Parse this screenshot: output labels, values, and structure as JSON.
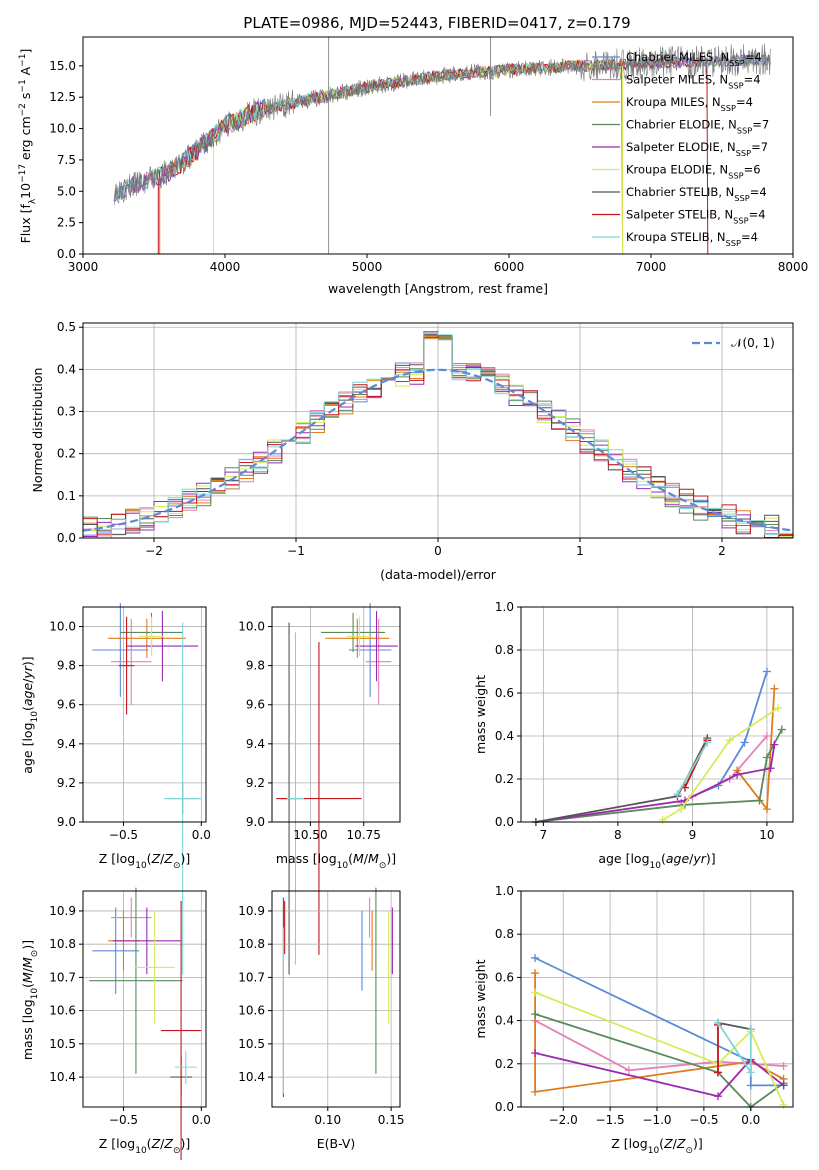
{
  "palette": {
    "Chabrier MILES": "#5b8ad8",
    "Salpeter MILES": "#e67fb9",
    "Kroupa MILES": "#e07b20",
    "Chabrier ELODIE": "#5a8a5a",
    "Salpeter ELODIE": "#9a2ab0",
    "Kroupa ELODIE": "#d6ec5a",
    "Chabrier STELIB": "#555555",
    "Salpeter STELIB": "#c0161c",
    "Kroupa STELIB": "#7fd6d6"
  },
  "chart_data": [
    {
      "id": "spectrum",
      "type": "line",
      "title": "PLATE=0986, MJD=52443, FIBERID=0417, z=0.179",
      "xlabel": "wavelength [Angstrom, rest frame]",
      "ylabel": "Flux [f",
      "xlim": [
        3000,
        8000
      ],
      "ylim": [
        0,
        17.3
      ],
      "xticks": [
        "3000",
        "4000",
        "5000",
        "6000",
        "7000",
        "8000"
      ],
      "yticks": [
        "0.0",
        "2.5",
        "5.0",
        "7.5",
        "10.0",
        "12.5",
        "15.0"
      ],
      "continuum": {
        "x": [
          3220,
          3400,
          3600,
          3800,
          4000,
          4200,
          4500,
          5000,
          5500,
          6000,
          6500,
          7000,
          7500,
          7840
        ],
        "y": [
          5.0,
          5.6,
          6.5,
          8.2,
          10.2,
          11.3,
          12.1,
          13.3,
          14.2,
          14.7,
          15.0,
          15.2,
          15.4,
          15.5
        ]
      },
      "legend": [
        {
          "label": "Chabrier MILES, N",
          "sub": "SSP",
          "suffix": "=4"
        },
        {
          "label": "Salpeter MILES, N",
          "sub": "SSP",
          "suffix": "=4"
        },
        {
          "label": "Kroupa MILES, N",
          "sub": "SSP",
          "suffix": "=4"
        },
        {
          "label": "Chabrier ELODIE, N",
          "sub": "SSP",
          "suffix": "=7"
        },
        {
          "label": "Salpeter ELODIE, N",
          "sub": "SSP",
          "suffix": "=7"
        },
        {
          "label": "Kroupa ELODIE, N",
          "sub": "SSP",
          "suffix": "=6"
        },
        {
          "label": "Chabrier STELIB, N",
          "sub": "SSP",
          "suffix": "=4"
        },
        {
          "label": "Salpeter STELIB, N",
          "sub": "SSP",
          "suffix": "=4"
        },
        {
          "label": "Kroupa STELIB, N",
          "sub": "SSP",
          "suffix": "=4"
        }
      ]
    },
    {
      "id": "residuals",
      "type": "line",
      "xlabel": "(data-model)/error",
      "ylabel": "Normed distribution",
      "xlim": [
        -2.5,
        2.5
      ],
      "ylim": [
        0,
        0.51
      ],
      "xticks": [
        -2,
        -1,
        0,
        1,
        2
      ],
      "xtick_labels": [
        "−2",
        "−1",
        "0",
        "1",
        "2"
      ],
      "yticks": [
        0.0,
        0.1,
        0.2,
        0.3,
        0.4,
        0.5
      ],
      "ytick_labels": [
        "0.0",
        "0.1",
        "0.2",
        "0.3",
        "0.4",
        "0.5"
      ],
      "bin_width": 0.1,
      "legend": "𝒩(0, 1)",
      "gaussian": {
        "mean": 0,
        "sigma": 1
      }
    },
    {
      "id": "age_vs_Z",
      "type": "scatter",
      "xlabel": "Z [log",
      "ylabel": "age  [log",
      "xlim": [
        -0.76,
        0.03
      ],
      "ylim": [
        9.0,
        10.1
      ],
      "xticks": [
        -0.5,
        0.0
      ],
      "xtick_labels": [
        "−0.5",
        "0.0"
      ],
      "yticks": [
        9.0,
        9.2,
        9.4,
        9.6,
        9.8,
        10.0
      ],
      "ytick_labels": [
        "9.0",
        "9.2",
        "9.4",
        "9.6",
        "9.8",
        "10.0"
      ],
      "points": [
        {
          "model": "Chabrier MILES",
          "x": -0.52,
          "xerr": 0.18,
          "y": 9.88,
          "yerr": 0.24
        },
        {
          "model": "Salpeter MILES",
          "x": -0.45,
          "xerr": 0.13,
          "y": 9.82,
          "yerr": 0.22
        },
        {
          "model": "Kroupa MILES",
          "x": -0.35,
          "xerr": 0.25,
          "y": 9.94,
          "yerr": 0.1
        },
        {
          "model": "Chabrier ELODIE",
          "x": -0.32,
          "xerr": 0.2,
          "y": 9.97,
          "yerr": 0.1
        },
        {
          "model": "Salpeter ELODIE",
          "x": -0.25,
          "xerr": 0.23,
          "y": 9.9,
          "yerr": 0.18
        },
        {
          "model": "Kroupa ELODIE",
          "x": -0.32,
          "xerr": 0.08,
          "y": 9.95,
          "yerr": 0.1
        },
        {
          "model": "Chabrier STELIB",
          "x": -0.12,
          "xerr": 0.1,
          "y": 9.12,
          "yerr": 0.08
        },
        {
          "model": "Salpeter STELIB",
          "x": -0.48,
          "xerr": 0.05,
          "y": 9.8,
          "yerr": 0.25
        },
        {
          "model": "Kroupa STELIB",
          "x": -0.12,
          "xerr": 0.12,
          "y": 9.12,
          "yerr": 0.9
        }
      ]
    },
    {
      "id": "age_vs_mass",
      "type": "scatter",
      "xlabel": "mass [log",
      "ylabel": "",
      "xlim": [
        10.32,
        10.92
      ],
      "ylim": [
        9.0,
        10.1
      ],
      "xticks": [
        10.5,
        10.75
      ],
      "xtick_labels": [
        "10.50",
        "10.75"
      ],
      "yticks": [
        9.0,
        9.2,
        9.4,
        9.6,
        9.8,
        10.0
      ],
      "ytick_labels": [
        "9.0",
        "9.2",
        "9.4",
        "9.6",
        "9.8",
        "10.0"
      ],
      "points": [
        {
          "model": "Chabrier MILES",
          "x": 10.78,
          "xerr": 0.1,
          "y": 9.88,
          "yerr": 0.24
        },
        {
          "model": "Salpeter MILES",
          "x": 10.82,
          "xerr": 0.06,
          "y": 9.82,
          "yerr": 0.22
        },
        {
          "model": "Kroupa MILES",
          "x": 10.72,
          "xerr": 0.15,
          "y": 9.94,
          "yerr": 0.1
        },
        {
          "model": "Chabrier ELODIE",
          "x": 10.7,
          "xerr": 0.15,
          "y": 9.97,
          "yerr": 0.1
        },
        {
          "model": "Salpeter ELODIE",
          "x": 10.81,
          "xerr": 0.1,
          "y": 9.9,
          "yerr": 0.18
        },
        {
          "model": "Kroupa ELODIE",
          "x": 10.73,
          "xerr": 0.06,
          "y": 9.95,
          "yerr": 0.1
        },
        {
          "model": "Chabrier STELIB",
          "x": 10.4,
          "xerr": 0.04,
          "y": 9.12,
          "yerr": 0.9
        },
        {
          "model": "Salpeter STELIB",
          "x": 10.54,
          "xerr": 0.2,
          "y": 9.12,
          "yerr": 0.8
        },
        {
          "model": "Kroupa STELIB",
          "x": 10.43,
          "xerr": 0.04,
          "y": 9.12,
          "yerr": 0.85
        }
      ]
    },
    {
      "id": "mass_weight_vs_age",
      "type": "line",
      "xlabel": "age  [log",
      "ylabel": "mass weight",
      "xlim": [
        6.7,
        10.35
      ],
      "ylim": [
        0,
        1.0
      ],
      "xticks": [
        7,
        8,
        9,
        10
      ],
      "xtick_labels": [
        "7",
        "8",
        "9",
        "10"
      ],
      "yticks": [
        0,
        0.2,
        0.4,
        0.6,
        0.8,
        1.0
      ],
      "ytick_labels": [
        "0.0",
        "0.2",
        "0.4",
        "0.6",
        "0.8",
        "1.0"
      ],
      "series": [
        {
          "name": "Chabrier MILES",
          "x": [
            9.0,
            9.35,
            9.7,
            10.0
          ],
          "y": [
            0.12,
            0.17,
            0.37,
            0.7
          ]
        },
        {
          "name": "Salpeter MILES",
          "x": [
            8.85,
            9.0,
            9.5,
            10.0
          ],
          "y": [
            0.09,
            0.12,
            0.2,
            0.4
          ]
        },
        {
          "name": "Kroupa MILES",
          "x": [
            9.6,
            10.0,
            10.1
          ],
          "y": [
            0.24,
            0.06,
            0.62
          ]
        },
        {
          "name": "Chabrier ELODIE",
          "x": [
            6.9,
            8.9,
            9.9,
            10.0,
            10.2
          ],
          "y": [
            0.0,
            0.08,
            0.1,
            0.3,
            0.43
          ]
        },
        {
          "name": "Salpeter ELODIE",
          "x": [
            6.9,
            8.9,
            9.6,
            10.05,
            10.1
          ],
          "y": [
            0.0,
            0.1,
            0.22,
            0.25,
            0.36
          ]
        },
        {
          "name": "Kroupa ELODIE",
          "x": [
            8.6,
            8.85,
            9.5,
            10.15
          ],
          "y": [
            0.01,
            0.06,
            0.38,
            0.53
          ]
        },
        {
          "name": "Chabrier STELIB",
          "x": [
            6.9,
            8.8,
            9.2
          ],
          "y": [
            0.0,
            0.12,
            0.39
          ]
        },
        {
          "name": "Salpeter STELIB",
          "x": [
            8.9,
            9.2
          ],
          "y": [
            0.16,
            0.38
          ]
        },
        {
          "name": "Kroupa STELIB",
          "x": [
            8.8,
            9.2
          ],
          "y": [
            0.13,
            0.37
          ]
        }
      ]
    },
    {
      "id": "mass_vs_Z",
      "type": "scatter",
      "xlabel": "Z [log",
      "ylabel": "mass [log",
      "xlim": [
        -0.76,
        0.03
      ],
      "ylim": [
        10.31,
        10.96
      ],
      "xticks": [
        -0.5,
        0.0
      ],
      "xtick_labels": [
        "−0.5",
        "0.0"
      ],
      "yticks": [
        10.4,
        10.5,
        10.6,
        10.7,
        10.8,
        10.9
      ],
      "ytick_labels": [
        "10.4",
        "10.5",
        "10.6",
        "10.7",
        "10.8",
        "10.9"
      ],
      "points": [
        {
          "model": "Chabrier MILES",
          "x": -0.55,
          "xerr": 0.15,
          "y": 10.78,
          "yerr": 0.13
        },
        {
          "model": "Salpeter MILES",
          "x": -0.45,
          "xerr": 0.13,
          "y": 10.88,
          "yerr": 0.06
        },
        {
          "model": "Kroupa MILES",
          "x": -0.5,
          "xerr": 0.1,
          "y": 10.81,
          "yerr": 0.09
        },
        {
          "model": "Chabrier ELODIE",
          "x": -0.42,
          "xerr": 0.3,
          "y": 10.69,
          "yerr": 0.28
        },
        {
          "model": "Salpeter ELODIE",
          "x": -0.35,
          "xerr": 0.22,
          "y": 10.81,
          "yerr": 0.1
        },
        {
          "model": "Kroupa ELODIE",
          "x": -0.3,
          "xerr": 0.13,
          "y": 10.73,
          "yerr": 0.17
        },
        {
          "model": "Chabrier STELIB",
          "x": -0.13,
          "xerr": 0.07,
          "y": 10.4,
          "yerr": 0.06
        },
        {
          "model": "Salpeter STELIB",
          "x": -0.13,
          "xerr": 0.13,
          "y": 10.54,
          "yerr": 0.39
        },
        {
          "model": "Kroupa STELIB",
          "x": -0.1,
          "xerr": 0.07,
          "y": 10.43,
          "yerr": 0.05
        }
      ]
    },
    {
      "id": "mass_vs_ebv",
      "type": "scatter",
      "xlabel": "E(B-V)",
      "ylabel": "",
      "xlim": [
        0.056,
        0.157
      ],
      "ylim": [
        10.31,
        10.96
      ],
      "xticks": [
        0.1,
        0.15
      ],
      "xtick_labels": [
        "0.10",
        "0.15"
      ],
      "yticks": [
        10.4,
        10.5,
        10.6,
        10.7,
        10.8,
        10.9
      ],
      "ytick_labels": [
        "10.4",
        "10.5",
        "10.6",
        "10.7",
        "10.8",
        "10.9"
      ],
      "points": [
        {
          "model": "Chabrier MILES",
          "x": 0.127,
          "y": 10.78,
          "yerr": 0.12
        },
        {
          "model": "Salpeter MILES",
          "x": 0.133,
          "y": 10.88,
          "yerr": 0.06
        },
        {
          "model": "Kroupa MILES",
          "x": 0.135,
          "y": 10.81,
          "yerr": 0.09
        },
        {
          "model": "Chabrier ELODIE",
          "x": 0.138,
          "y": 10.69,
          "yerr": 0.28
        },
        {
          "model": "Salpeter ELODIE",
          "x": 0.151,
          "y": 10.81,
          "yerr": 0.1
        },
        {
          "model": "Kroupa ELODIE",
          "x": 0.148,
          "y": 10.73,
          "yerr": 0.17
        },
        {
          "model": "Chabrier STELIB",
          "x": 0.065,
          "y": 10.64,
          "yerr": 0.3
        },
        {
          "model": "Salpeter STELIB",
          "x": 0.066,
          "y": 10.85,
          "yerr": 0.08
        },
        {
          "model": "Kroupa STELIB",
          "x": 0.065,
          "y": 10.6,
          "yerr": 0.25
        }
      ]
    },
    {
      "id": "mass_weight_vs_Z",
      "type": "line",
      "xlabel": "Z [log",
      "ylabel": "mass weight",
      "xlim": [
        -2.45,
        0.45
      ],
      "ylim": [
        0,
        1.0
      ],
      "xticks": [
        -2.0,
        -1.5,
        -1.0,
        -0.5,
        0.0
      ],
      "xtick_labels": [
        "−2.0",
        "−1.5",
        "−1.0",
        "−0.5",
        "0.0"
      ],
      "yticks": [
        0,
        0.2,
        0.4,
        0.6,
        0.8,
        1.0
      ],
      "ytick_labels": [
        "0.0",
        "0.2",
        "0.4",
        "0.6",
        "0.8",
        "1.0"
      ],
      "series": [
        {
          "name": "Chabrier MILES",
          "x": [
            -2.3,
            0.0,
            0.0,
            0.35
          ],
          "y": [
            0.69,
            0.21,
            0.1,
            0.1
          ]
        },
        {
          "name": "Salpeter MILES",
          "x": [
            -2.3,
            -1.3,
            -0.35,
            0.35
          ],
          "y": [
            0.4,
            0.17,
            0.21,
            0.19
          ]
        },
        {
          "name": "Kroupa MILES",
          "x": [
            -2.3,
            -2.3,
            0.0,
            0.35
          ],
          "y": [
            0.62,
            0.07,
            0.21,
            0.13
          ]
        },
        {
          "name": "Chabrier ELODIE",
          "x": [
            -2.3,
            -0.35,
            0.0,
            0.35
          ],
          "y": [
            0.43,
            0.16,
            0.0,
            0.11
          ]
        },
        {
          "name": "Salpeter ELODIE",
          "x": [
            -2.3,
            -0.35,
            0.0,
            0.35
          ],
          "y": [
            0.25,
            0.05,
            0.22,
            0.1
          ]
        },
        {
          "name": "Kroupa ELODIE",
          "x": [
            -2.3,
            -0.35,
            0.0,
            0.35
          ],
          "y": [
            0.53,
            0.2,
            0.35,
            0.01
          ]
        },
        {
          "name": "Chabrier STELIB",
          "x": [
            -0.35,
            0.0
          ],
          "y": [
            0.39,
            0.36
          ]
        },
        {
          "name": "Salpeter STELIB",
          "x": [
            -0.35,
            -0.35
          ],
          "y": [
            0.38,
            0.16
          ]
        },
        {
          "name": "Kroupa STELIB",
          "x": [
            -0.35,
            0.0,
            0.0
          ],
          "y": [
            0.39,
            0.16,
            0.36
          ]
        }
      ]
    }
  ]
}
